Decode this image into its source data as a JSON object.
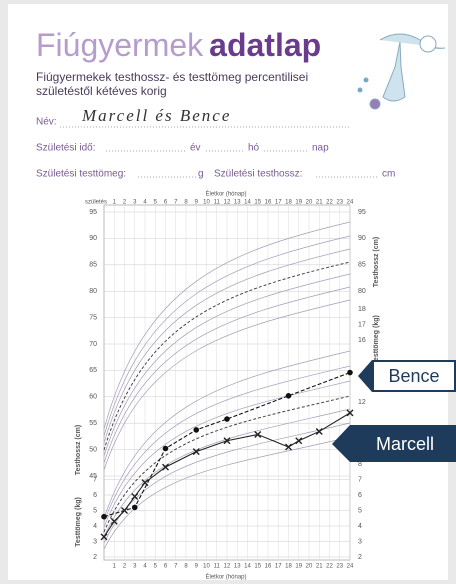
{
  "header": {
    "title_light": "Fiúgyermek",
    "title_bold": "adatlap",
    "subtitle_line1": "Fiúgyermekek testhossz- és testtömeg percentilisei",
    "subtitle_line2": "születéstől kétéves korig"
  },
  "form": {
    "name_label": "Név:",
    "name_value": "Marcell és Bence",
    "birth_date_label": "Születési idő:",
    "year_label": "év",
    "month_label": "hó",
    "day_label": "nap",
    "birth_weight_label": "Születési testtömeg:",
    "weight_unit": "g",
    "birth_length_label": "Születési testhossz:",
    "length_unit": "cm"
  },
  "chart": {
    "top_axis_title": "Életkor (hónap)",
    "bottom_axis_title": "Életkor (hónap)",
    "birth_label": "születés",
    "xlim": [
      0,
      24
    ],
    "xticks": [
      1,
      2,
      3,
      4,
      5,
      6,
      7,
      8,
      9,
      10,
      11,
      12,
      13,
      14,
      15,
      16,
      17,
      18,
      19,
      20,
      21,
      22,
      23,
      24
    ],
    "length_axis": {
      "title": "Testhossz (cm)",
      "lim": [
        45,
        95
      ],
      "left_ticks": [
        45,
        50,
        55,
        60,
        65,
        70,
        75,
        80,
        85,
        90,
        95
      ],
      "right_ticks": [
        80,
        85,
        90,
        95
      ]
    },
    "weight_axis": {
      "title": "Testtömeg (kg)",
      "lim": [
        2,
        18
      ],
      "left_ticks": [
        2,
        3,
        4,
        5,
        6,
        7
      ],
      "right_ticks": [
        2,
        3,
        4,
        5,
        6,
        7,
        8,
        12,
        16,
        17,
        18
      ]
    },
    "series": [
      {
        "name": "Bence",
        "color": "#111111",
        "marker": "dot",
        "x": [
          0,
          3,
          6,
          9,
          12,
          18,
          24
        ],
        "values": [
          4.6,
          5.2,
          9.0,
          10.2,
          10.9,
          12.4,
          13.9
        ]
      },
      {
        "name": "Marcell",
        "color": "#222222",
        "marker": "cross",
        "x": [
          0,
          1,
          2,
          3,
          4,
          6,
          9,
          12,
          15,
          18,
          19,
          21,
          24
        ],
        "values": [
          3.3,
          4.3,
          5.0,
          5.9,
          6.8,
          7.8,
          8.8,
          9.5,
          9.9,
          9.1,
          9.5,
          10.1,
          11.3
        ]
      }
    ]
  }
}
